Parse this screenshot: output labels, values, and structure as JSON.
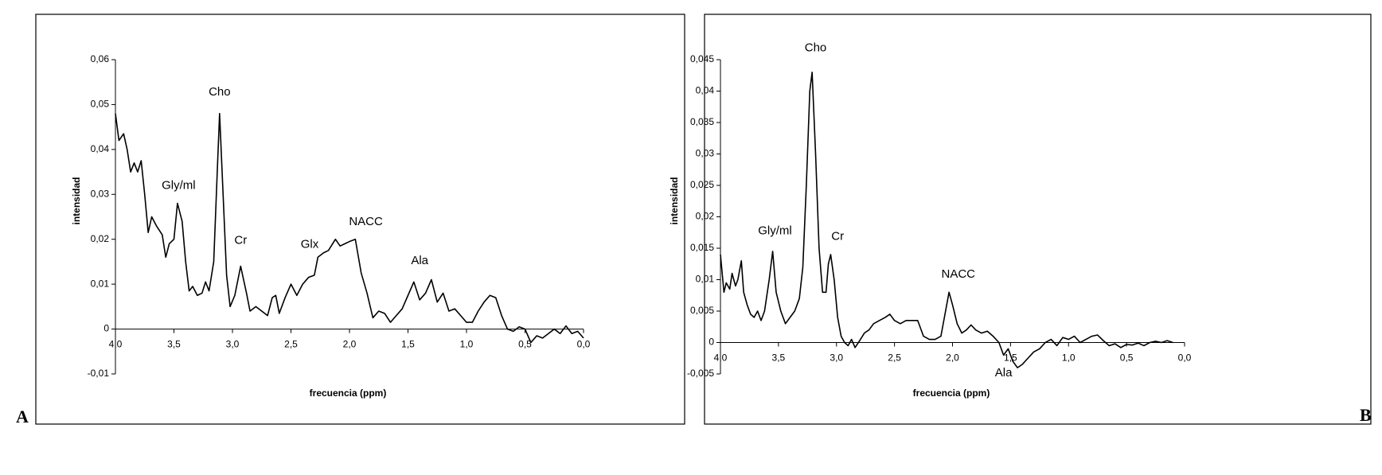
{
  "chart_data": [
    {
      "type": "line",
      "panel_label": "A",
      "xlabel": "frecuencia (ppm)",
      "ylabel": "intensidad",
      "color": "#000000",
      "x_reversed": true,
      "xlim": [
        4.0,
        0.0
      ],
      "ylim": [
        -0.01,
        0.06
      ],
      "xticks": [
        {
          "value": 4.0,
          "label": "4,0"
        },
        {
          "value": 3.5,
          "label": "3,5"
        },
        {
          "value": 3.0,
          "label": "3,0"
        },
        {
          "value": 2.5,
          "label": "2,5"
        },
        {
          "value": 2.0,
          "label": "2,0"
        },
        {
          "value": 1.5,
          "label": "1,5"
        },
        {
          "value": 1.0,
          "label": "1,0"
        },
        {
          "value": 0.5,
          "label": "0,5"
        },
        {
          "value": 0.0,
          "label": "0,0"
        }
      ],
      "yticks": [
        {
          "value": -0.01,
          "label": "-0,01"
        },
        0,
        {
          "value": 0.01,
          "label": "0,01"
        },
        {
          "value": 0.02,
          "label": "0,02"
        },
        {
          "value": 0.03,
          "label": "0,03"
        },
        {
          "value": 0.04,
          "label": "0,04"
        },
        {
          "value": 0.05,
          "label": "0,05"
        },
        {
          "value": 0.06,
          "label": "0,06"
        }
      ],
      "annotations": [
        {
          "text": "Cho",
          "x": 3.11,
          "y": 0.0527
        },
        {
          "text": "Gly/ml",
          "x": 3.46,
          "y": 0.0319
        },
        {
          "text": "Cr",
          "x": 2.93,
          "y": 0.0197
        },
        {
          "text": "Glx",
          "x": 2.34,
          "y": 0.0188
        },
        {
          "text": "NACC",
          "x": 1.86,
          "y": 0.0238
        },
        {
          "text": "Ala",
          "x": 1.4,
          "y": 0.0152
        }
      ],
      "x": [
        4.0,
        3.97,
        3.93,
        3.9,
        3.87,
        3.84,
        3.81,
        3.78,
        3.75,
        3.72,
        3.69,
        3.65,
        3.6,
        3.57,
        3.54,
        3.5,
        3.47,
        3.43,
        3.4,
        3.37,
        3.34,
        3.3,
        3.26,
        3.23,
        3.2,
        3.16,
        3.13,
        3.11,
        3.08,
        3.05,
        3.02,
        2.98,
        2.93,
        2.88,
        2.85,
        2.8,
        2.75,
        2.7,
        2.66,
        2.63,
        2.6,
        2.55,
        2.5,
        2.45,
        2.4,
        2.35,
        2.3,
        2.27,
        2.22,
        2.18,
        2.12,
        2.08,
        2.04,
        2.0,
        1.95,
        1.9,
        1.85,
        1.8,
        1.75,
        1.7,
        1.65,
        1.6,
        1.55,
        1.5,
        1.45,
        1.4,
        1.35,
        1.3,
        1.25,
        1.2,
        1.15,
        1.1,
        1.05,
        1.0,
        0.95,
        0.9,
        0.85,
        0.8,
        0.75,
        0.7,
        0.65,
        0.6,
        0.55,
        0.5,
        0.45,
        0.4,
        0.35,
        0.3,
        0.25,
        0.2,
        0.15,
        0.1,
        0.05,
        0.0
      ],
      "values": [
        0.048,
        0.042,
        0.0435,
        0.04,
        0.035,
        0.037,
        0.035,
        0.0375,
        0.03,
        0.0215,
        0.025,
        0.023,
        0.021,
        0.016,
        0.019,
        0.02,
        0.028,
        0.024,
        0.015,
        0.0085,
        0.0095,
        0.0075,
        0.008,
        0.0105,
        0.0085,
        0.015,
        0.035,
        0.048,
        0.03,
        0.012,
        0.005,
        0.0075,
        0.014,
        0.008,
        0.004,
        0.005,
        0.004,
        0.003,
        0.007,
        0.0075,
        0.0035,
        0.007,
        0.01,
        0.0075,
        0.01,
        0.0115,
        0.012,
        0.016,
        0.017,
        0.0175,
        0.02,
        0.0185,
        0.019,
        0.0195,
        0.02,
        0.0125,
        0.008,
        0.0025,
        0.004,
        0.0035,
        0.0015,
        0.003,
        0.0045,
        0.0075,
        0.0105,
        0.0065,
        0.008,
        0.011,
        0.006,
        0.008,
        0.004,
        0.0045,
        0.003,
        0.0015,
        0.0015,
        0.004,
        0.006,
        0.0075,
        0.007,
        0.003,
        0.0,
        -0.0005,
        0.0005,
        0.0,
        -0.003,
        -0.0015,
        -0.002,
        -0.001,
        0.0,
        -0.001,
        0.0007,
        -0.001,
        -0.0005,
        -0.002
      ]
    },
    {
      "type": "line",
      "panel_label": "B",
      "xlabel": "frecuencia (ppm)",
      "ylabel": "intensidad",
      "color": "#000000",
      "x_reversed": true,
      "xlim": [
        4.0,
        0.0
      ],
      "ylim": [
        -0.005,
        0.045
      ],
      "xticks": [
        {
          "value": 4.0,
          "label": "4,0"
        },
        {
          "value": 3.5,
          "label": "3,5"
        },
        {
          "value": 3.0,
          "label": "3,0"
        },
        {
          "value": 2.5,
          "label": "2,5"
        },
        {
          "value": 2.0,
          "label": "2,0"
        },
        {
          "value": 1.5,
          "label": "1,5"
        },
        {
          "value": 1.0,
          "label": "1,0"
        },
        {
          "value": 0.5,
          "label": "0,5"
        },
        {
          "value": 0.0,
          "label": "0,0"
        }
      ],
      "yticks": [
        {
          "value": -0.005,
          "label": "-0,005"
        },
        0,
        {
          "value": 0.005,
          "label": "0,005"
        },
        {
          "value": 0.01,
          "label": "0,01"
        },
        {
          "value": 0.015,
          "label": "0,015"
        },
        {
          "value": 0.02,
          "label": "0,02"
        },
        {
          "value": 0.025,
          "label": "0,025"
        },
        {
          "value": 0.03,
          "label": "0,03"
        },
        {
          "value": 0.035,
          "label": "0,035"
        },
        {
          "value": 0.04,
          "label": "0,04"
        },
        {
          "value": 0.045,
          "label": "0,045"
        }
      ],
      "annotations": [
        {
          "text": "Cho",
          "x": 3.18,
          "y": 0.0468
        },
        {
          "text": "Gly/ml",
          "x": 3.53,
          "y": 0.0177
        },
        {
          "text": "Cr",
          "x": 2.99,
          "y": 0.0168
        },
        {
          "text": "NACC",
          "x": 1.95,
          "y": 0.0108
        },
        {
          "text": "Ala",
          "x": 1.56,
          "y": -0.0049
        }
      ],
      "x": [
        4.0,
        3.97,
        3.95,
        3.92,
        3.9,
        3.87,
        3.85,
        3.82,
        3.8,
        3.77,
        3.74,
        3.71,
        3.68,
        3.65,
        3.62,
        3.58,
        3.55,
        3.52,
        3.48,
        3.44,
        3.4,
        3.36,
        3.32,
        3.29,
        3.26,
        3.23,
        3.21,
        3.18,
        3.15,
        3.12,
        3.09,
        3.07,
        3.05,
        3.02,
        2.99,
        2.96,
        2.93,
        2.9,
        2.87,
        2.84,
        2.8,
        2.76,
        2.72,
        2.68,
        2.63,
        2.58,
        2.54,
        2.5,
        2.45,
        2.4,
        2.35,
        2.3,
        2.25,
        2.2,
        2.15,
        2.1,
        2.06,
        2.03,
        2.0,
        1.96,
        1.92,
        1.88,
        1.84,
        1.8,
        1.75,
        1.7,
        1.65,
        1.6,
        1.56,
        1.52,
        1.48,
        1.44,
        1.4,
        1.35,
        1.3,
        1.25,
        1.2,
        1.15,
        1.1,
        1.05,
        1.0,
        0.95,
        0.9,
        0.85,
        0.8,
        0.75,
        0.7,
        0.65,
        0.6,
        0.55,
        0.5,
        0.45,
        0.4,
        0.35,
        0.3,
        0.25,
        0.2,
        0.15,
        0.1
      ],
      "values": [
        0.014,
        0.008,
        0.0095,
        0.0085,
        0.011,
        0.009,
        0.01,
        0.013,
        0.008,
        0.006,
        0.0045,
        0.004,
        0.005,
        0.0035,
        0.005,
        0.01,
        0.0145,
        0.008,
        0.005,
        0.003,
        0.004,
        0.005,
        0.007,
        0.012,
        0.025,
        0.04,
        0.043,
        0.03,
        0.015,
        0.008,
        0.008,
        0.0125,
        0.014,
        0.01,
        0.004,
        0.001,
        0.0,
        -0.0005,
        0.0005,
        -0.0008,
        0.0003,
        0.0015,
        0.002,
        0.003,
        0.0035,
        0.004,
        0.0045,
        0.0035,
        0.003,
        0.0035,
        0.0035,
        0.0035,
        0.001,
        0.0005,
        0.0005,
        0.001,
        0.005,
        0.008,
        0.006,
        0.003,
        0.0015,
        0.002,
        0.0028,
        0.002,
        0.0015,
        0.0018,
        0.001,
        0.0,
        -0.002,
        -0.001,
        -0.003,
        -0.004,
        -0.0035,
        -0.0025,
        -0.0015,
        -0.001,
        0.0,
        0.0005,
        -0.0005,
        0.0008,
        0.0005,
        0.001,
        0.0,
        0.0005,
        0.001,
        0.0012,
        0.0003,
        -0.0005,
        -0.0002,
        -0.0008,
        -0.0003,
        -0.0004,
        -0.0001,
        -0.0005,
        0.0,
        0.0002,
        0.0,
        0.0003,
        0.0
      ]
    }
  ]
}
